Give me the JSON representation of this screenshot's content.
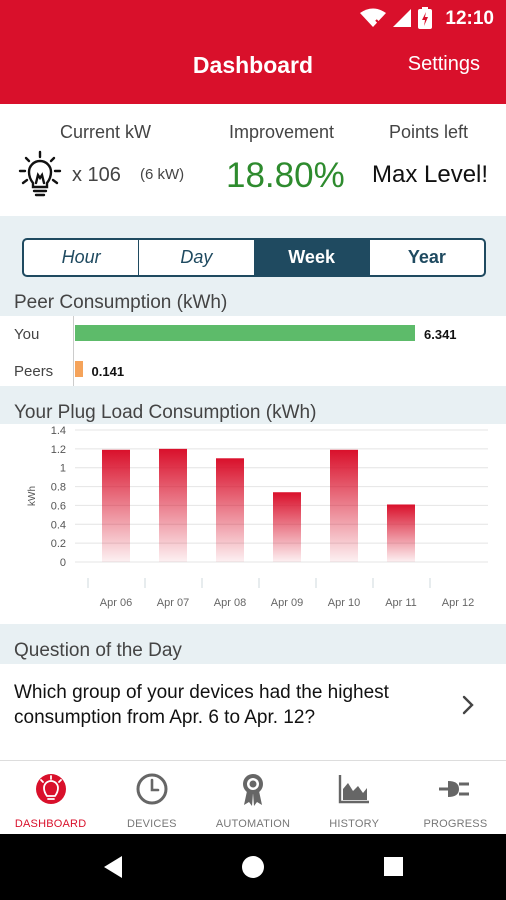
{
  "status_bar": {
    "time": "12:10"
  },
  "app_bar": {
    "title": "Dashboard",
    "settings_label": "Settings"
  },
  "stats": {
    "current_kw_label": "Current kW",
    "multiplier": "x 106",
    "kw_value": "(6 kW)",
    "improvement_label": "Improvement",
    "improvement_value": "18.80%",
    "points_label": "Points left",
    "points_value": "Max Level!",
    "improvement_color": "#2e8b2e"
  },
  "time_range": {
    "options": [
      "Hour",
      "Day",
      "Week",
      "Year"
    ],
    "selected": "Week"
  },
  "peer_consumption": {
    "title": "Peer Consumption (kWh)",
    "rows": [
      {
        "label": "You",
        "value": 6.341,
        "value_label": "6.341",
        "color": "#5dbb6a"
      },
      {
        "label": "Peers",
        "value": 0.141,
        "value_label": "0.141",
        "color": "#f5a35a"
      }
    ]
  },
  "plug_load": {
    "title": "Your Plug Load Consumption (kWh)"
  },
  "chart_data": {
    "type": "bar",
    "title": "Your Plug Load Consumption (kWh)",
    "xlabel": "",
    "ylabel": "kWh",
    "categories": [
      "Apr 06",
      "Apr 07",
      "Apr 08",
      "Apr 09",
      "Apr 10",
      "Apr 11",
      "Apr 12"
    ],
    "values": [
      1.19,
      1.2,
      1.1,
      0.74,
      1.19,
      0.61,
      0
    ],
    "ylim": [
      0,
      1.4
    ],
    "yticks": [
      "0",
      "0.2",
      "0.4",
      "0.6",
      "0.8",
      "1",
      "1.2",
      "1.4"
    ],
    "grid": true,
    "bar_color": "#d9102b"
  },
  "question": {
    "title": "Question of the Day",
    "text": "Which group of your devices had the highest consumption from Apr. 6 to Apr. 12?"
  },
  "bottom_nav": {
    "items": [
      {
        "label": "DASHBOARD",
        "icon": "dashboard-icon",
        "active": true
      },
      {
        "label": "DEVICES",
        "icon": "clock-icon",
        "active": false
      },
      {
        "label": "AUTOMATION",
        "icon": "ribbon-icon",
        "active": false
      },
      {
        "label": "HISTORY",
        "icon": "area-chart-icon",
        "active": false
      },
      {
        "label": "PROGRESS",
        "icon": "plug-icon",
        "active": false
      }
    ]
  },
  "colors": {
    "brand_red": "#d9102b",
    "navy": "#1f4a60",
    "panel_bg": "#e8f0f3"
  }
}
